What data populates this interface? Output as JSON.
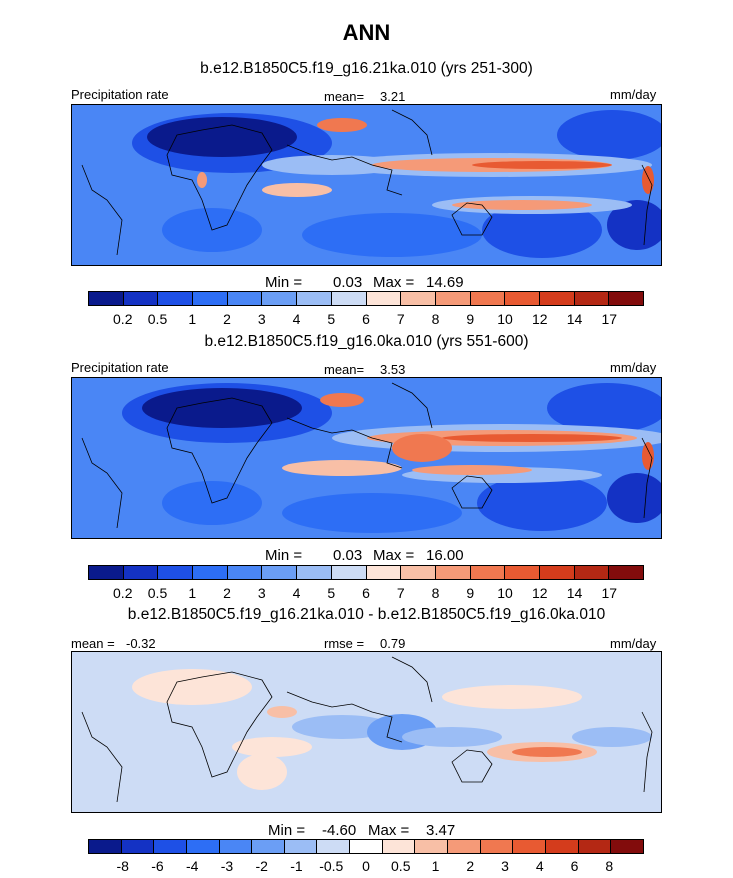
{
  "figure": {
    "title": "ANN"
  },
  "palettes": {
    "precip": [
      "#0a1a8c",
      "#1432c4",
      "#1e50e6",
      "#2d6ef5",
      "#4a86f5",
      "#6b9ef5",
      "#9bbdf5",
      "#cddcf5",
      "#fde4d8",
      "#f8bfa6",
      "#f59a78",
      "#f07850",
      "#e85a32",
      "#d43c1c",
      "#b42814",
      "#820c0c"
    ],
    "diff": [
      "#0a1a8c",
      "#1432c4",
      "#1e50e6",
      "#2d6ef5",
      "#4a86f5",
      "#6b9ef5",
      "#9bbdf5",
      "#cddcf5",
      "#ffffff",
      "#fde4d8",
      "#f8bfa6",
      "#f59a78",
      "#f07850",
      "#e85a32",
      "#d43c1c",
      "#b42814",
      "#820c0c"
    ]
  },
  "chart_data": [
    {
      "type": "heatmap",
      "panel": "top",
      "subtitle": "b.e12.B1850C5.f19_g16.21ka.010 (yrs 251-300)",
      "left_label": "Precipitation rate",
      "mean_label": "mean=",
      "mean_value": "3.21",
      "units": "mm/day",
      "min_label": "Min =",
      "min_value": "0.03",
      "max_label": "Max =",
      "max_value": "14.69",
      "colorbar_levels": [
        "0.2",
        "0.5",
        "1",
        "2",
        "3",
        "4",
        "5",
        "6",
        "7",
        "8",
        "9",
        "10",
        "12",
        "14",
        "17"
      ]
    },
    {
      "type": "heatmap",
      "panel": "middle",
      "subtitle": "b.e12.B1850C5.f19_g16.0ka.010 (yrs 551-600)",
      "left_label": "Precipitation rate",
      "mean_label": "mean=",
      "mean_value": "3.53",
      "units": "mm/day",
      "min_label": "Min =",
      "min_value": "0.03",
      "max_label": "Max =",
      "max_value": "16.00",
      "colorbar_levels": [
        "0.2",
        "0.5",
        "1",
        "2",
        "3",
        "4",
        "5",
        "6",
        "7",
        "8",
        "9",
        "10",
        "12",
        "14",
        "17"
      ]
    },
    {
      "type": "heatmap",
      "panel": "bottom",
      "subtitle": "b.e12.B1850C5.f19_g16.21ka.010 - b.e12.B1850C5.f19_g16.0ka.010",
      "left_label": "mean =",
      "left_value": "-0.32",
      "rmse_label": "rmse =",
      "rmse_value": "0.79",
      "units": "mm/day",
      "min_label": "Min =",
      "min_value": "-4.60",
      "max_label": "Max =",
      "max_value": "3.47",
      "colorbar_levels": [
        "-8",
        "-6",
        "-4",
        "-3",
        "-2",
        "-1",
        "-0.5",
        "0",
        "0.5",
        "1",
        "2",
        "3",
        "4",
        "6",
        "8"
      ]
    }
  ]
}
